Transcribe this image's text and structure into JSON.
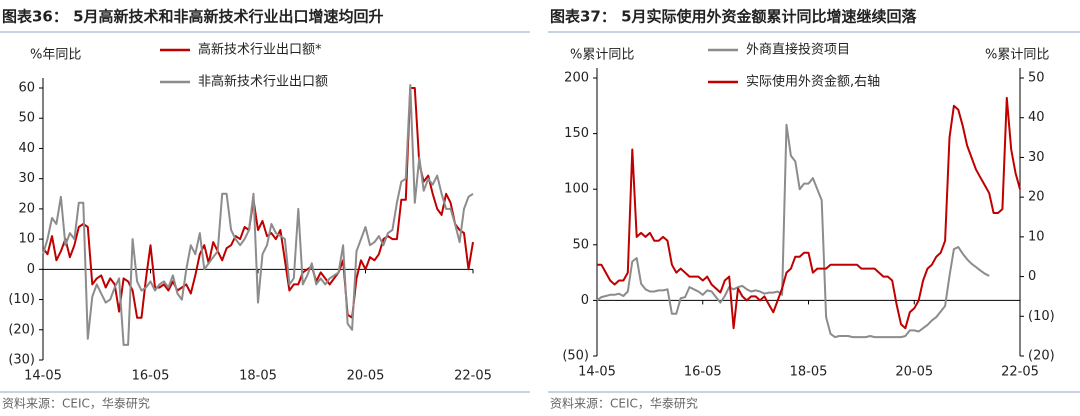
{
  "chart_data": [
    {
      "type": "line",
      "title": "图表36：  5月高新技术和非高新技术行业出口增速均回升",
      "ylabel": "%年同比",
      "source": "资料来源：CEIC，华泰研究",
      "categories": [
        "14-05",
        null,
        null,
        null,
        null,
        null,
        null,
        null,
        null,
        null,
        null,
        null,
        null,
        null,
        null,
        null,
        null,
        null,
        null,
        null,
        null,
        null,
        null,
        null,
        "16-05",
        null,
        null,
        null,
        null,
        null,
        null,
        null,
        null,
        null,
        null,
        null,
        null,
        null,
        null,
        null,
        null,
        null,
        null,
        null,
        null,
        null,
        null,
        null,
        "18-05",
        null,
        null,
        null,
        null,
        null,
        null,
        null,
        null,
        null,
        null,
        null,
        null,
        null,
        null,
        null,
        null,
        null,
        null,
        null,
        null,
        null,
        null,
        null,
        "20-05",
        null,
        null,
        null,
        null,
        null,
        null,
        null,
        null,
        null,
        null,
        null,
        null,
        null,
        null,
        null,
        null,
        null,
        null,
        null,
        null,
        null,
        null,
        null,
        "22-05"
      ],
      "series": [
        {
          "name": "高新技术行业出口额*",
          "color": "#c00000",
          "values": [
            7,
            5,
            11,
            3,
            6,
            10,
            4,
            8,
            14,
            15,
            14,
            -5,
            -3,
            -2,
            -6,
            -3,
            -5,
            -14,
            -3,
            -4,
            -7,
            -16,
            -16,
            -3,
            8,
            -6,
            -6,
            -5,
            -7,
            -4,
            -7,
            -6,
            -5,
            -8,
            -2,
            5,
            8,
            2,
            9,
            6,
            3,
            7,
            8,
            11,
            10,
            14,
            13,
            23,
            13,
            16,
            11,
            12,
            10,
            13,
            3,
            -7,
            -5,
            -5,
            -1,
            0,
            1,
            -4,
            -1,
            -3,
            -5,
            -3,
            -1,
            3,
            -15,
            -16,
            -3,
            3,
            0,
            4,
            3,
            5,
            10,
            11,
            10,
            10,
            23,
            23,
            60,
            60,
            35,
            29,
            31,
            25,
            20,
            18,
            25,
            22,
            15,
            13,
            12,
            0,
            9
          ]
        },
        {
          "name": "非高新技术行业出口额",
          "color": "#8c8c8c",
          "values": [
            5,
            10,
            17,
            15,
            24,
            8,
            12,
            10,
            22,
            22,
            -23,
            -9,
            -5,
            -8,
            -11,
            -10,
            -6,
            -3,
            -25,
            -25,
            10,
            -4,
            -7,
            -6,
            -4,
            -7,
            -5,
            -4,
            -6,
            -2,
            -8,
            -10,
            0,
            8,
            5,
            12,
            0,
            2,
            4,
            6,
            25,
            25,
            13,
            10,
            8,
            10,
            13,
            25,
            -11,
            5,
            8,
            15,
            12,
            11,
            10,
            -5,
            -3,
            20,
            -5,
            -2,
            2,
            -5,
            -3,
            -5,
            -3,
            -2,
            -1,
            8,
            -18,
            -20,
            6,
            10,
            14,
            8,
            9,
            11,
            8,
            12,
            13,
            22,
            29,
            30,
            61,
            22,
            37,
            26,
            30,
            28,
            31,
            25,
            20,
            20,
            15,
            9,
            20,
            24,
            25
          ]
        }
      ],
      "ylim": [
        -30,
        60
      ],
      "yticks": [
        60,
        50,
        40,
        30,
        20,
        10,
        0,
        {
          "value": -10,
          "label": "(10)"
        },
        {
          "value": -20,
          "label": "(20)"
        },
        {
          "value": -30,
          "label": "(30)"
        }
      ]
    },
    {
      "type": "line",
      "title": "图表37：  5月实际使用外资金额累计同比增速继续回落",
      "ylabel": "%累计同比",
      "y2label": "%累计同比",
      "source": "资料来源：CEIC，华泰研究",
      "categories": [
        "14-05",
        null,
        null,
        null,
        null,
        null,
        null,
        null,
        null,
        null,
        null,
        null,
        null,
        null,
        null,
        null,
        null,
        null,
        null,
        null,
        null,
        null,
        null,
        null,
        "16-05",
        null,
        null,
        null,
        null,
        null,
        null,
        null,
        null,
        null,
        null,
        null,
        null,
        null,
        null,
        null,
        null,
        null,
        null,
        null,
        null,
        null,
        null,
        null,
        "18-05",
        null,
        null,
        null,
        null,
        null,
        null,
        null,
        null,
        null,
        null,
        null,
        null,
        null,
        null,
        null,
        null,
        null,
        null,
        null,
        null,
        null,
        null,
        null,
        "20-05",
        null,
        null,
        null,
        null,
        null,
        null,
        null,
        null,
        null,
        null,
        null,
        null,
        null,
        null,
        null,
        null,
        null,
        null,
        null,
        null,
        null,
        null,
        null,
        "22-05"
      ],
      "series": [
        {
          "name": "外商直接投资项目",
          "color": "#8c8c8c",
          "values": [
            0,
            3,
            4,
            5,
            5,
            6,
            4,
            8,
            35,
            38,
            15,
            10,
            8,
            8,
            9,
            9,
            10,
            -12,
            -12,
            2,
            3,
            12,
            10,
            8,
            5,
            9,
            8,
            3,
            -2,
            4,
            12,
            10,
            12,
            13,
            10,
            8,
            9,
            8,
            6,
            7,
            7,
            8,
            5,
            158,
            130,
            125,
            100,
            105,
            105,
            110,
            100,
            90,
            -15,
            -30,
            -33,
            -32,
            -32,
            -32,
            -33,
            -33,
            -33,
            -33,
            -32,
            -33,
            -33,
            -33,
            -33,
            -33,
            -33,
            -33,
            -32,
            -27,
            -27,
            -28,
            -25,
            -22,
            -18,
            -15,
            -10,
            -5,
            22,
            46,
            48,
            42,
            37,
            33,
            30,
            27,
            24,
            22,
            null,
            null,
            null,
            null,
            null,
            null,
            null
          ]
        },
        {
          "name": "实际使用外资金额,右轴",
          "color": "#c00000",
          "axis": "y2",
          "values": [
            3,
            3,
            1,
            -1,
            -2,
            -1,
            -1,
            1,
            32,
            10,
            11,
            10,
            11,
            9,
            9,
            10,
            9,
            3,
            1,
            2,
            1,
            0,
            0,
            0,
            -1,
            0,
            -2,
            -3,
            -4,
            -1,
            0,
            -13,
            -3,
            -5,
            -6,
            -5,
            -5,
            -6,
            -5,
            -7,
            -9,
            -6,
            -3,
            1,
            2,
            5,
            5,
            6,
            6,
            1,
            2,
            2,
            2,
            3,
            3,
            3,
            3,
            3,
            3,
            3,
            2,
            2,
            2,
            2,
            1,
            0,
            0,
            -1,
            -7,
            -12,
            -13,
            -9,
            -8,
            -6,
            -1,
            2,
            3,
            5,
            6,
            9,
            35,
            43,
            42,
            38,
            33,
            30,
            27,
            25,
            23,
            21,
            16,
            16,
            17,
            45,
            32,
            26,
            22
          ]
        }
      ],
      "ylim": [
        -50,
        200
      ],
      "yticks": [
        200,
        150,
        100,
        50,
        0,
        {
          "value": -50,
          "label": "(50)"
        }
      ],
      "y2lim": [
        -20,
        50
      ],
      "y2ticks": [
        50,
        40,
        30,
        20,
        10,
        0,
        {
          "value": -10,
          "label": "(10)"
        },
        {
          "value": -20,
          "label": "(20)"
        }
      ]
    }
  ]
}
